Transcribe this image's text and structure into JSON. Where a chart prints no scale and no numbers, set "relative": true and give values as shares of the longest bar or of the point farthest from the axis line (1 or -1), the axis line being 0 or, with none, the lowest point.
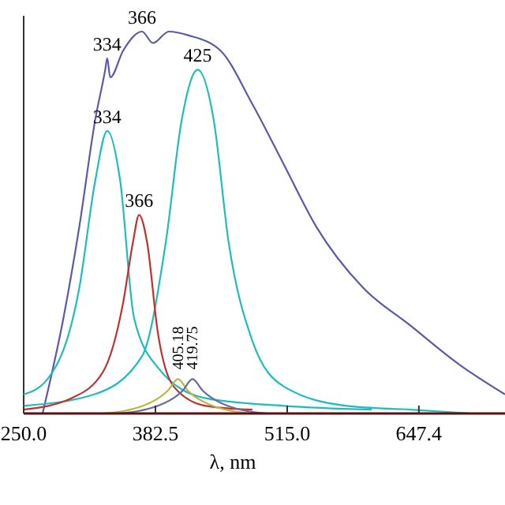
{
  "chart_data": {
    "type": "line",
    "xlabel": "λ, nm",
    "relative": true,
    "xlim": [
      250,
      734
    ],
    "xticks": [
      {
        "value": 250,
        "label": "250.0"
      },
      {
        "value": 382.5,
        "label": "382.5"
      },
      {
        "value": 515,
        "label": "515.0"
      },
      {
        "value": 647.4,
        "label": "647.4"
      }
    ],
    "grid": false,
    "line_style": "solid",
    "series": [
      {
        "color": "#5a5aa8",
        "x": [
          269,
          290,
          306,
          322,
          332,
          334,
          337,
          350,
          369,
          380,
          396,
          416,
          448,
          480,
          512,
          544,
          591,
          639,
          687,
          734
        ],
        "values": [
          0,
          0.25,
          0.49,
          0.77,
          0.9,
          0.93,
          0.88,
          0.95,
          1.0,
          0.97,
          1.0,
          0.99,
          0.95,
          0.81,
          0.65,
          0.49,
          0.33,
          0.23,
          0.13,
          0.05
        ]
      },
      {
        "color": "#20bcbc",
        "x": [
          250,
          274,
          306,
          322,
          334,
          347,
          361,
          385,
          433,
          512,
          600
        ],
        "values": [
          0.05,
          0.09,
          0.33,
          0.61,
          0.74,
          0.61,
          0.25,
          0.12,
          0.04,
          0.02,
          0.01
        ]
      },
      {
        "color": "#20bcbc",
        "x": [
          250,
          321,
          369,
          393,
          409,
          425,
          441,
          456,
          480,
          512,
          575,
          639,
          700
        ],
        "values": [
          0.02,
          0.05,
          0.15,
          0.45,
          0.77,
          0.9,
          0.77,
          0.45,
          0.19,
          0.07,
          0.02,
          0.01,
          0
        ]
      },
      {
        "color": "#c03030",
        "x": [
          250,
          298,
          330,
          350,
          360,
          366,
          374,
          385,
          401,
          433,
          480
        ],
        "values": [
          0.01,
          0.04,
          0.11,
          0.29,
          0.45,
          0.52,
          0.45,
          0.21,
          0.07,
          0.02,
          0.01
        ]
      },
      {
        "color": "#b8b840",
        "x": [
          330,
          370,
          395,
          405.18,
          415,
          440,
          480
        ],
        "values": [
          0,
          0.02,
          0.06,
          0.09,
          0.06,
          0.02,
          0
        ]
      },
      {
        "color": "#6a6a9a",
        "x": [
          345,
          385,
          410,
          419.75,
          430,
          455,
          495
        ],
        "values": [
          0,
          0.02,
          0.06,
          0.09,
          0.06,
          0.02,
          0
        ]
      }
    ],
    "annotations": [
      {
        "text": "334",
        "x": 334,
        "y": 0.93
      },
      {
        "text": "366",
        "x": 369,
        "y": 1.0
      },
      {
        "text": "334",
        "x": 334,
        "y": 0.74
      },
      {
        "text": "425",
        "x": 425,
        "y": 0.9
      },
      {
        "text": "366",
        "x": 366,
        "y": 0.52
      },
      {
        "text": "405.18",
        "x": 405.18,
        "y": 0.09
      },
      {
        "text": "419.75",
        "x": 419.75,
        "y": 0.09
      }
    ]
  }
}
